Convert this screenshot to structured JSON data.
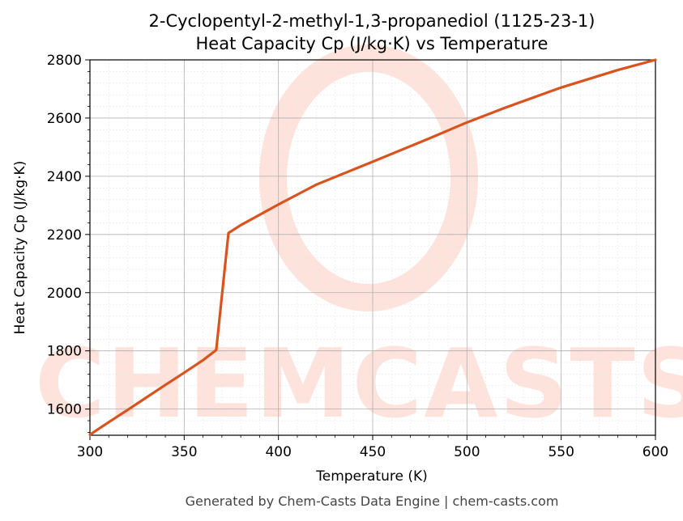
{
  "chart_data": {
    "type": "line",
    "title": "2-Cyclopentyl-2-methyl-1,3-propanediol (1125-23-1)",
    "subtitle": "Heat Capacity Cp (J/kg·K) vs Temperature",
    "xlabel": "Temperature (K)",
    "ylabel": "Heat Capacity Cp (J/kg·K)",
    "xlim": [
      300,
      600
    ],
    "ylim": [
      1510,
      2800
    ],
    "x_ticks": [
      300,
      350,
      400,
      450,
      500,
      550,
      600
    ],
    "y_ticks": [
      1600,
      1800,
      2000,
      2200,
      2400,
      2600,
      2800
    ],
    "grid": true,
    "series": [
      {
        "color": "#d9531e",
        "x": [
          300,
          310,
          320,
          330,
          340,
          350,
          360,
          367,
          373.5,
          380,
          400,
          420,
          450,
          480,
          500,
          520,
          550,
          580,
          600
        ],
        "y": [
          1512,
          1555,
          1597,
          1640,
          1683,
          1725,
          1768,
          1803,
          2205,
          2232,
          2303,
          2371,
          2450,
          2530,
          2585,
          2635,
          2705,
          2765,
          2800
        ]
      }
    ]
  },
  "watermark": {
    "text": "CHEMCASTS",
    "color": "#fde3dc"
  },
  "footer": "Generated by Chem-Casts Data Engine | chem-casts.com"
}
